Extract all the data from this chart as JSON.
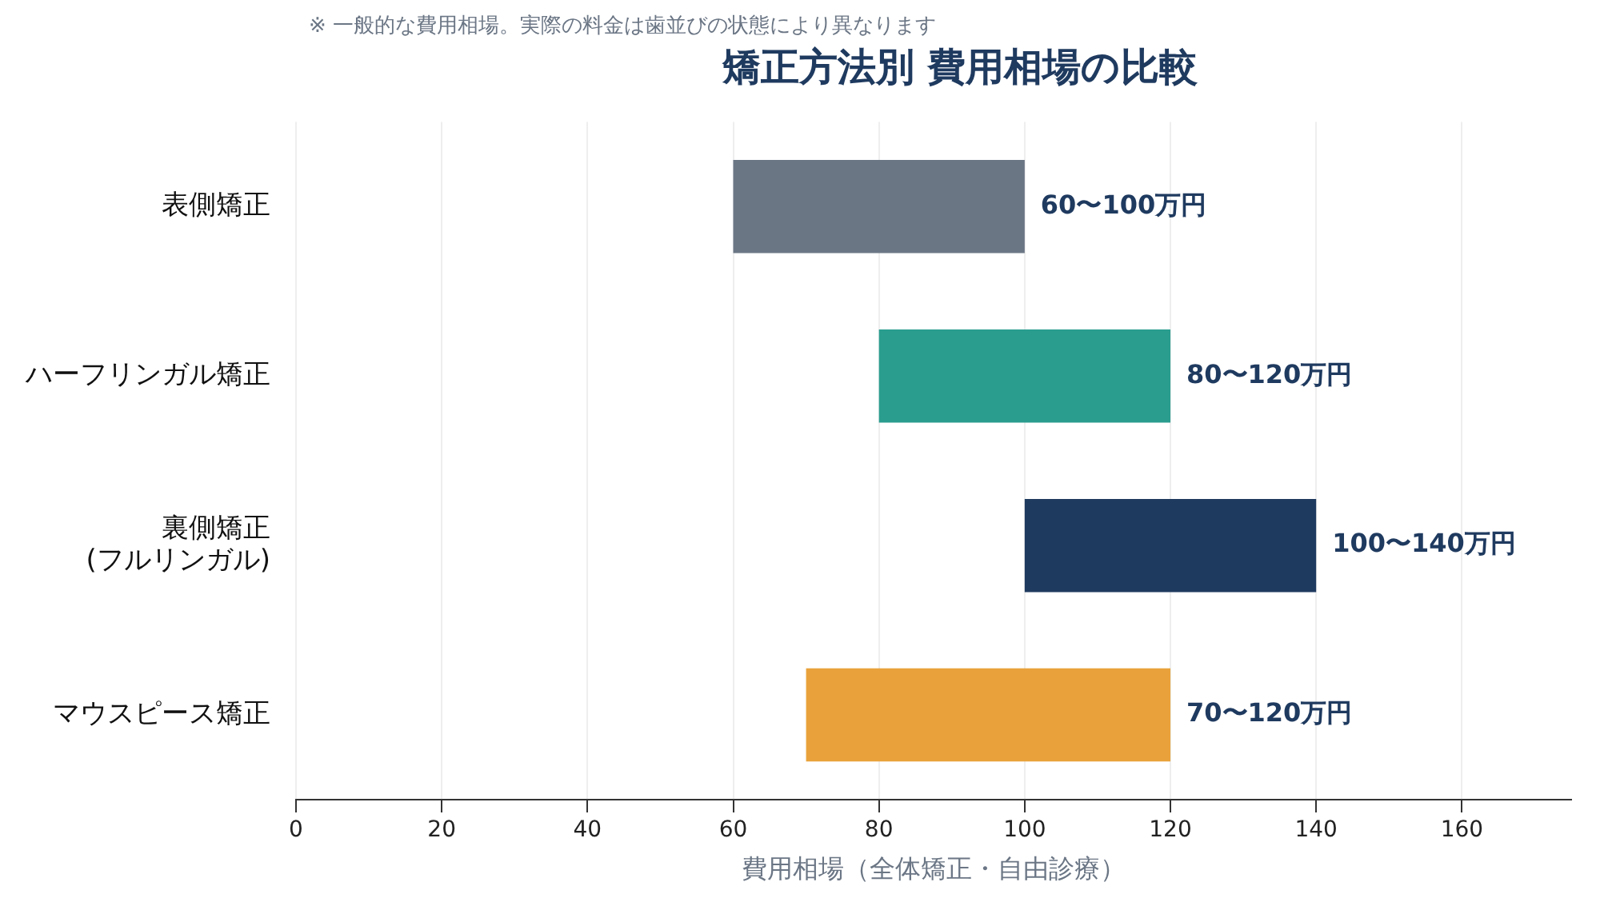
{
  "chart_data": {
    "type": "bar",
    "orientation": "horizontal",
    "title": "矯正方法別 費用相場の比較",
    "annotations": [
      "※ 一般的な費用相場。実際の料金は歯並びの状態により異なります",
      {
        "text": "60〜100万円",
        "x": 100,
        "y": "表側矯正"
      },
      {
        "text": "80〜120万円",
        "x": 120,
        "y": "ハーフリンガル矯正"
      },
      {
        "text": "100〜140万円",
        "x": 140,
        "y": "裏側矯正\n(フルリンガル)"
      },
      {
        "text": "70〜120万円",
        "x": 120,
        "y": "マウスピース矯正"
      }
    ],
    "xlabel": "費用相場（全体矯正・自由診療）",
    "categories": [
      "表側矯正",
      "ハーフリンガル矯正",
      "裏側矯正\n(フルリンガル)",
      "マウスピース矯正"
    ],
    "base": [
      60,
      80,
      100,
      70
    ],
    "values": [
      40,
      40,
      40,
      50
    ],
    "colors": [
      "#6b7685",
      "#2a9d8f",
      "#1f3a5f",
      "#e9a23b"
    ],
    "xlim": [
      0,
      175
    ],
    "xticks": [
      0,
      20,
      40,
      60,
      80,
      100,
      120,
      140,
      160
    ],
    "grid": "x",
    "legend": false
  }
}
